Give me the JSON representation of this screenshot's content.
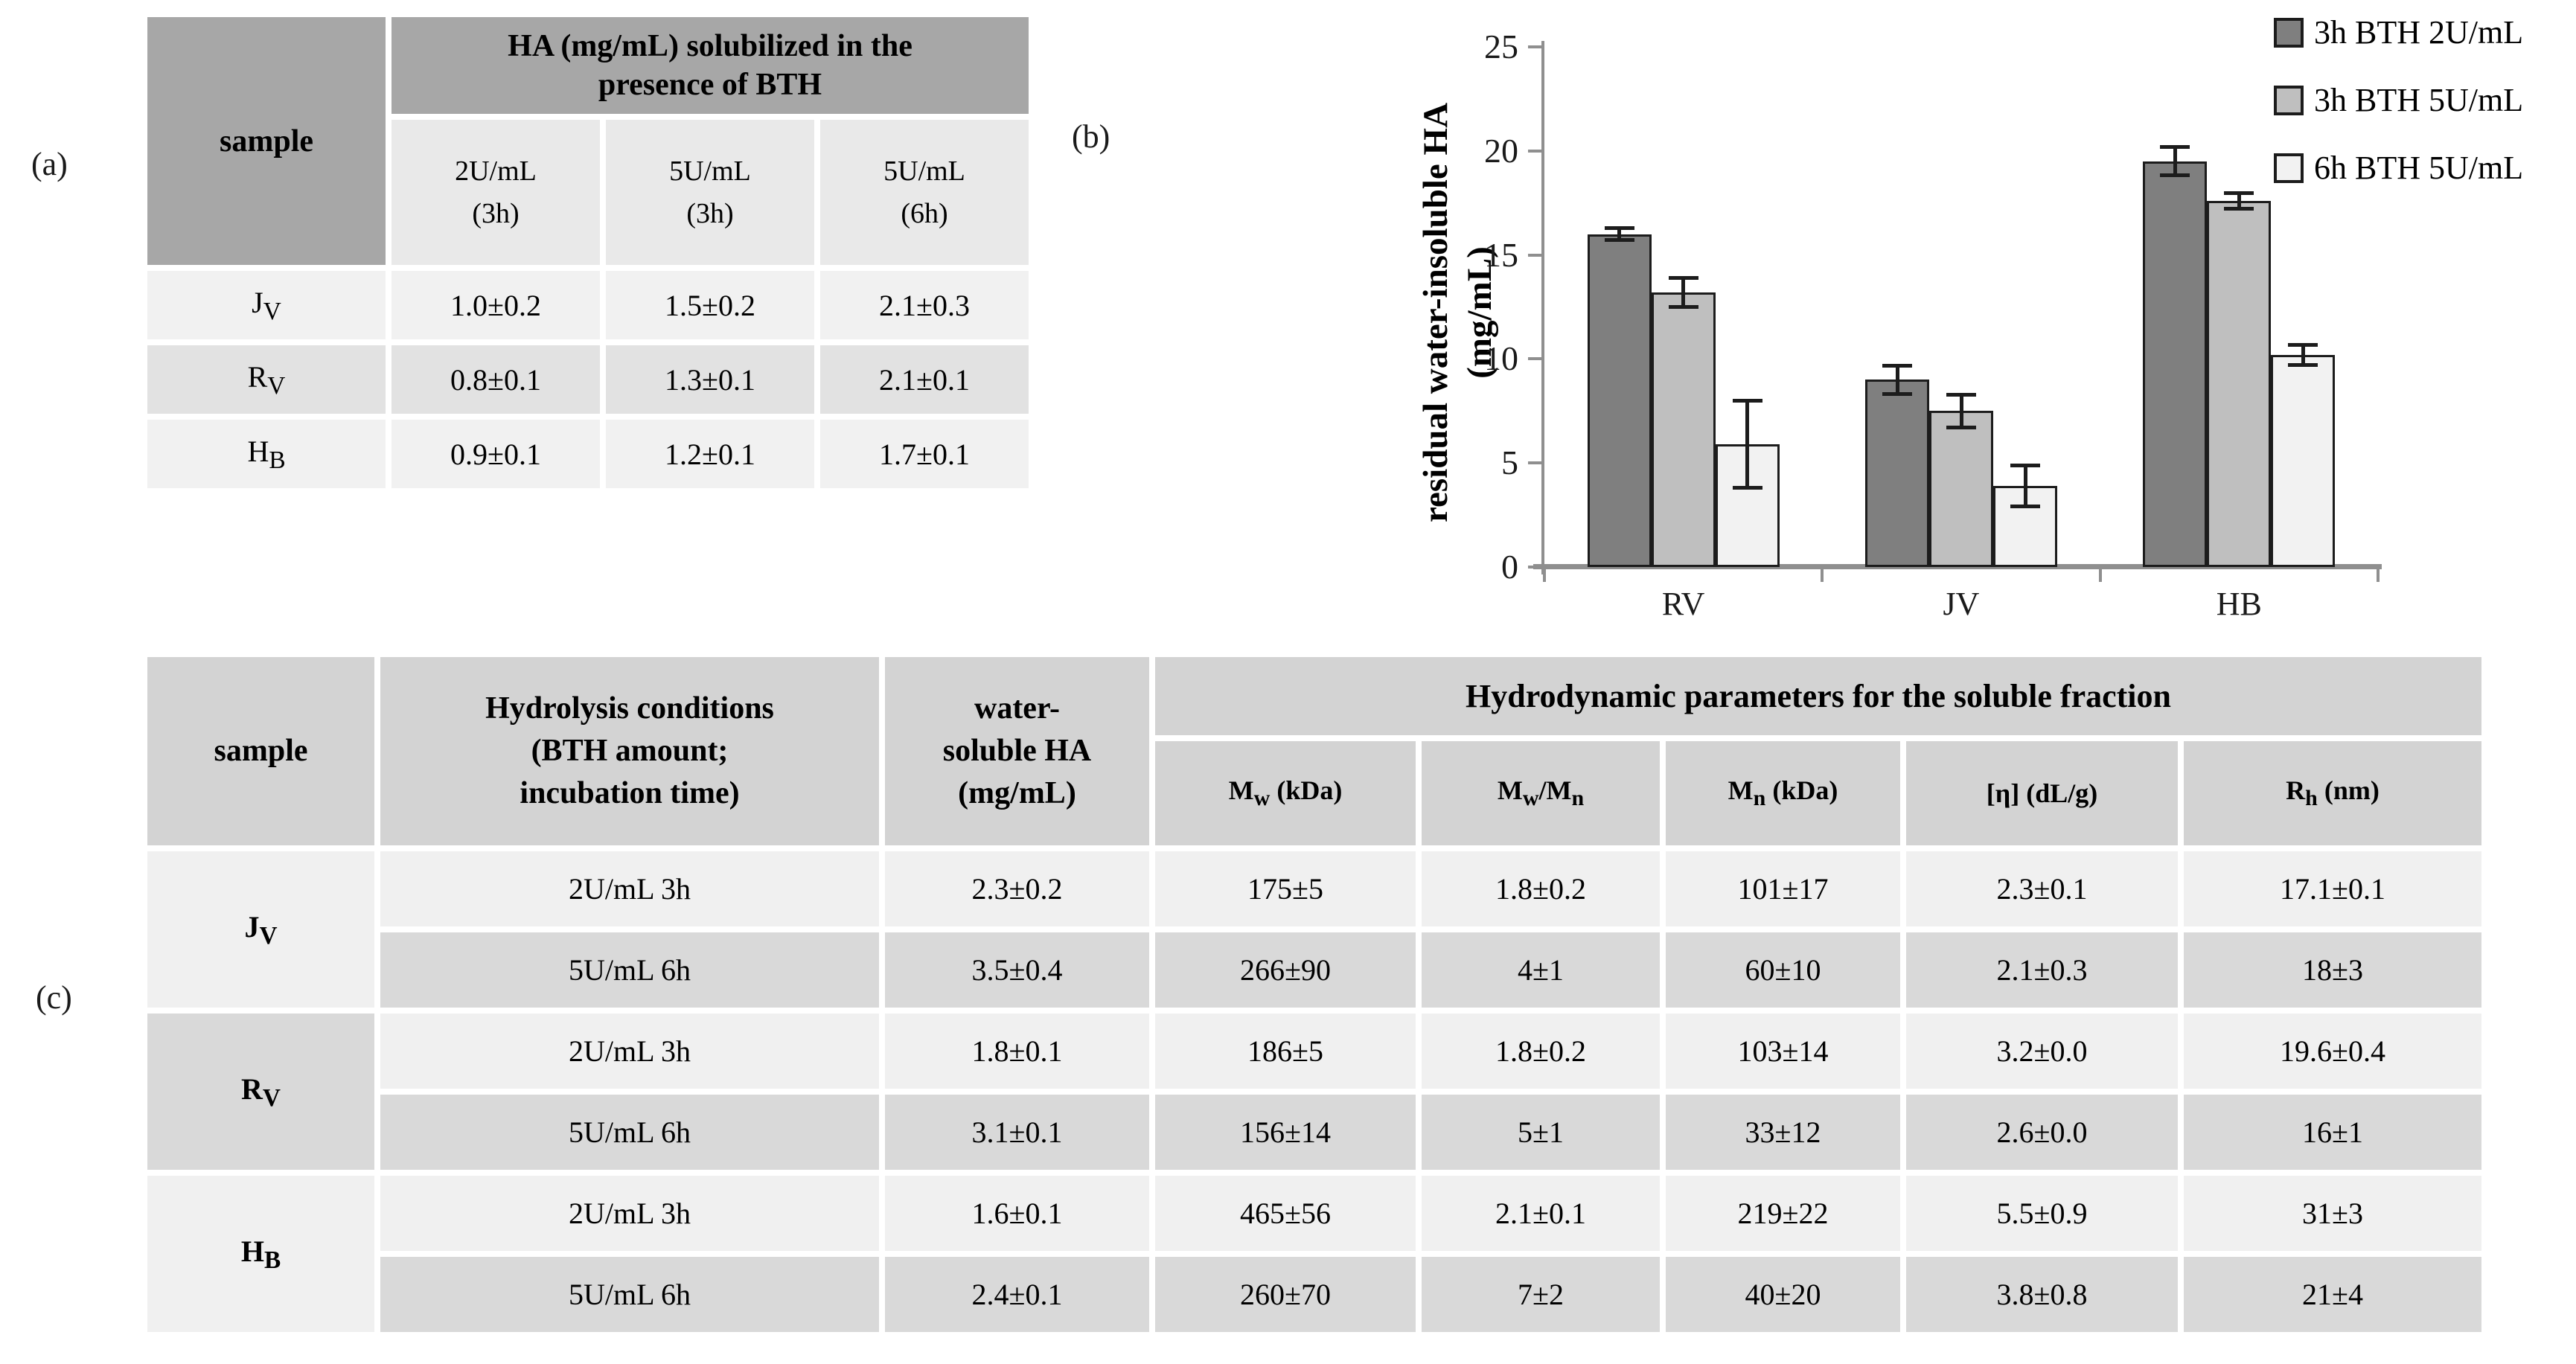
{
  "panel_a": {
    "label": "(a)",
    "table": {
      "corner_header": "sample",
      "main_header": "HA (mg/mL) solubilized in the\npresence of BTH",
      "sub_headers": [
        "2U/mL\n(3h)",
        "5U/mL\n(3h)",
        "5U/mL\n(6h)"
      ],
      "rows": [
        {
          "sample_html": "J<sub>V</sub>",
          "v1": "1.0±0.2",
          "v2": "1.5±0.2",
          "v3": "2.1±0.3"
        },
        {
          "sample_html": "R<sub>V</sub>",
          "v1": "0.8±0.1",
          "v2": "1.3±0.1",
          "v3": "2.1±0.1"
        },
        {
          "sample_html": "H<sub>B</sub>",
          "v1": "0.9±0.1",
          "v2": "1.2±0.1",
          "v3": "1.7±0.1"
        }
      ]
    }
  },
  "panel_b": {
    "label": "(b)"
  },
  "panel_c": {
    "label": "(c)",
    "table": {
      "headers": {
        "sample": "sample",
        "hydrolysis": "Hydrolysis conditions\n(BTH amount;\nincubation time)",
        "water_soluble": "water-\nsoluble HA\n(mg/mL)",
        "hydrodynamic": "Hydrodynamic parameters for the soluble fraction",
        "sub_html": [
          "M<sub>w</sub> (kDa)",
          "M<sub>w</sub>/M<sub>n</sub>",
          "M<sub>n</sub> (kDa)",
          "[η] (dL/g)",
          "R<sub>h</sub> (nm)"
        ]
      },
      "groups": [
        {
          "sample_html": "J<sub>V</sub>",
          "rows": [
            {
              "condition": "2U/mL 3h",
              "water_soluble": "2.3±0.2",
              "mw": "175±5",
              "mwmn": "1.8±0.2",
              "mn": "101±17",
              "eta": "2.3±0.1",
              "rh": "17.1±0.1"
            },
            {
              "condition": "5U/mL 6h",
              "water_soluble": "3.5±0.4",
              "mw": "266±90",
              "mwmn": "4±1",
              "mn": "60±10",
              "eta": "2.1±0.3",
              "rh": "18±3"
            }
          ]
        },
        {
          "sample_html": "R<sub>V</sub>",
          "rows": [
            {
              "condition": "2U/mL 3h",
              "water_soluble": "1.8±0.1",
              "mw": "186±5",
              "mwmn": "1.8±0.2",
              "mn": "103±14",
              "eta": "3.2±0.0",
              "rh": "19.6±0.4"
            },
            {
              "condition": "5U/mL 6h",
              "water_soluble": "3.1±0.1",
              "mw": "156±14",
              "mwmn": "5±1",
              "mn": "33±12",
              "eta": "2.6±0.0",
              "rh": "16±1"
            }
          ]
        },
        {
          "sample_html": "H<sub>B</sub>",
          "rows": [
            {
              "condition": "2U/mL 3h",
              "water_soluble": "1.6±0.1",
              "mw": "465±56",
              "mwmn": "2.1±0.1",
              "mn": "219±22",
              "eta": "5.5±0.9",
              "rh": "31±3"
            },
            {
              "condition": "5U/mL 6h",
              "water_soluble": "2.4±0.1",
              "mw": "260±70",
              "mwmn": "7±2",
              "mn": "40±20",
              "eta": "3.8±0.8",
              "rh": "21±4"
            }
          ]
        }
      ]
    }
  },
  "chart_data": {
    "type": "bar",
    "categories": [
      "RV",
      "JV",
      "HB"
    ],
    "series": [
      {
        "name": "3h BTH 2U/mL",
        "color": "#7f7f7f",
        "values": [
          16.0,
          9.0,
          19.5
        ],
        "errors": [
          0.3,
          0.7,
          0.7
        ]
      },
      {
        "name": "3h BTH 5U/mL",
        "color": "#bfbfbf",
        "values": [
          13.2,
          7.5,
          17.6
        ],
        "errors": [
          0.7,
          0.8,
          0.4
        ]
      },
      {
        "name": "6h BTH 5U/mL",
        "color": "#f2f2f2",
        "values": [
          5.9,
          3.9,
          10.2
        ],
        "errors": [
          2.1,
          1.0,
          0.5
        ]
      }
    ],
    "title": "",
    "xlabel": "",
    "ylabel": "residual water-insoluble HA\n(mg/mL)",
    "ylim": [
      0,
      25
    ],
    "yticks": [
      0,
      5,
      10,
      15,
      20,
      25
    ],
    "grid": false,
    "legend_position": "top-right",
    "error_bars": true
  },
  "colors": {
    "table_header_dark": "#a7a7a7",
    "table_header_gray": "#d3d3d3",
    "row_light": "#f1f1f1",
    "row_mid": "#e2e2e2",
    "row_gray": "#d9d9d9",
    "axis_gray": "#8f8f8f",
    "bar_outline": "#1c1c1c"
  }
}
